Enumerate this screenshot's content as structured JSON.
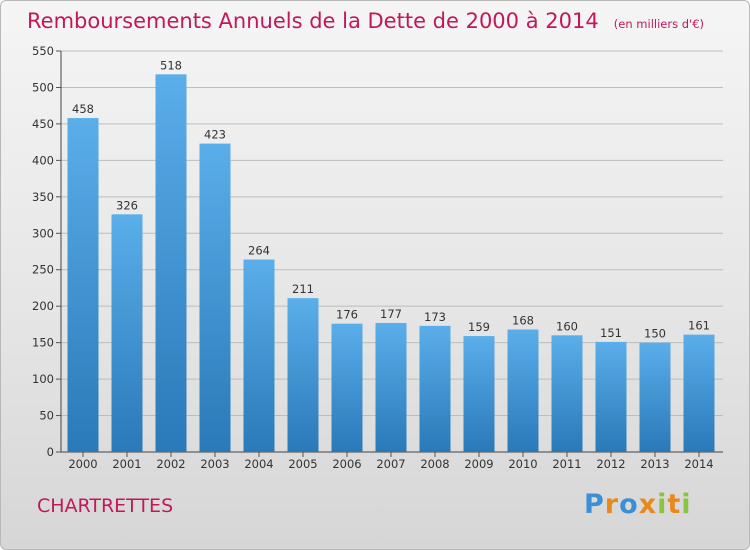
{
  "title": "Remboursements Annuels de la Dette de 2000 à 2014",
  "subtitle": "(en milliers d'€)",
  "commune": "CHARTRETTES",
  "logo_text": "Proxiti",
  "colors": {
    "title": "#c2185b",
    "bar_light": "#5aaeea",
    "bar_dark": "#2a79b8",
    "grid": "#bdbdbd"
  },
  "chart_data": {
    "type": "bar",
    "title": "Remboursements Annuels de la Dette de 2000 à 2014",
    "subtitle": "(en milliers d'€)",
    "xlabel": "",
    "ylabel": "",
    "categories": [
      "2000",
      "2001",
      "2002",
      "2003",
      "2004",
      "2005",
      "2006",
      "2007",
      "2008",
      "2009",
      "2010",
      "2011",
      "2012",
      "2013",
      "2014"
    ],
    "values": [
      458,
      326,
      518,
      423,
      264,
      211,
      176,
      177,
      173,
      159,
      168,
      160,
      151,
      150,
      161
    ],
    "ylim": [
      0,
      550
    ],
    "yticks": [
      0,
      50,
      100,
      150,
      200,
      250,
      300,
      350,
      400,
      450,
      500,
      550
    ],
    "grid": true,
    "data_labels": true
  }
}
